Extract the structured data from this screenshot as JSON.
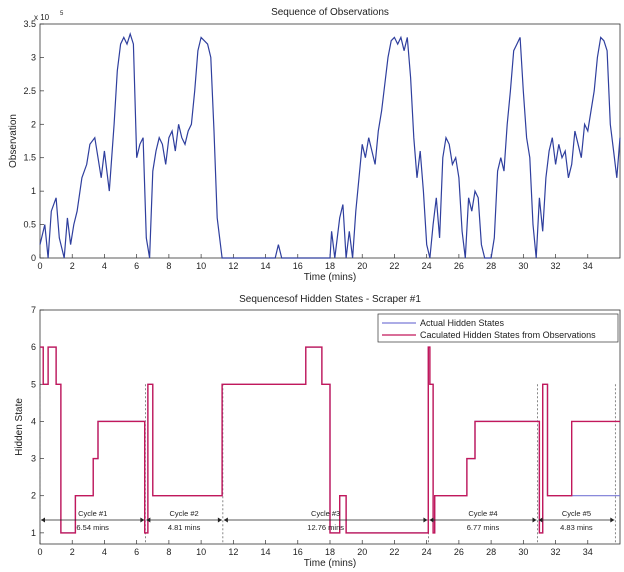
{
  "chart_data": [
    {
      "type": "line",
      "title": "Sequence of Observations",
      "xlabel": "Time (mins)",
      "ylabel": "Observation",
      "y_multiplier_label": "x 10",
      "y_multiplier_exp": "5",
      "xlim": [
        0,
        36
      ],
      "ylim": [
        0,
        3.5
      ],
      "xticks": [
        0,
        2,
        4,
        6,
        8,
        10,
        12,
        14,
        16,
        18,
        20,
        22,
        24,
        26,
        28,
        30,
        32,
        34
      ],
      "yticks": [
        0,
        0.5,
        1,
        1.5,
        2,
        2.5,
        3,
        3.5
      ],
      "grid": false,
      "color": "#2f3f9e",
      "series": [
        {
          "x": [
            0,
            0.3,
            0.5,
            0.7,
            1.0,
            1.2,
            1.5,
            1.7,
            1.9,
            2.1,
            2.3,
            2.6,
            2.9,
            3.1,
            3.4,
            3.6,
            3.8,
            4.0,
            4.3,
            4.6,
            4.8,
            5.0,
            5.2,
            5.4,
            5.6,
            5.8,
            6.0,
            6.2,
            6.4,
            6.6,
            6.8,
            7.0,
            7.2,
            7.4,
            7.6,
            7.8,
            8.0,
            8.2,
            8.4,
            8.6,
            8.8,
            9.0,
            9.2,
            9.4,
            9.6,
            9.8,
            10.0,
            10.2,
            10.4,
            10.6,
            10.8,
            11.0,
            11.3,
            11.6,
            12.0,
            13.0,
            14.0,
            14.6,
            14.8,
            15.0,
            16.0,
            17.0,
            17.3,
            17.6,
            18.0,
            18.1,
            18.3,
            18.6,
            18.8,
            19.0,
            19.2,
            19.4,
            19.6,
            19.8,
            20.0,
            20.2,
            20.4,
            20.6,
            20.8,
            21.0,
            21.2,
            21.4,
            21.6,
            21.8,
            22.0,
            22.2,
            22.4,
            22.6,
            22.8,
            23.0,
            23.2,
            23.4,
            23.6,
            23.8,
            24.0,
            24.2,
            24.4,
            24.6,
            24.8,
            25.0,
            25.2,
            25.4,
            25.6,
            25.8,
            26.0,
            26.2,
            26.4,
            26.6,
            26.8,
            27.0,
            27.2,
            27.4,
            27.6,
            27.8,
            28.0,
            28.2,
            28.4,
            28.6,
            28.8,
            29.0,
            29.2,
            29.4,
            29.6,
            29.8,
            30.0,
            30.2,
            30.4,
            30.6,
            30.8,
            31.0,
            31.2,
            31.4,
            31.6,
            31.8,
            32.0,
            32.2,
            32.4,
            32.6,
            32.8,
            33.0,
            33.2,
            33.4,
            33.6,
            33.8,
            34.0,
            34.2,
            34.4,
            34.6,
            34.8,
            35.0,
            35.2,
            35.4,
            35.6,
            35.8,
            36.0
          ],
          "y": [
            0.2,
            0.5,
            0.0,
            0.7,
            0.9,
            0.3,
            0.0,
            0.6,
            0.2,
            0.5,
            0.7,
            1.2,
            1.4,
            1.7,
            1.8,
            1.5,
            1.2,
            1.6,
            1.0,
            2.0,
            2.8,
            3.2,
            3.3,
            3.2,
            3.35,
            3.2,
            1.5,
            1.7,
            1.8,
            0.3,
            0.0,
            1.3,
            1.6,
            1.8,
            1.7,
            1.4,
            1.8,
            1.9,
            1.6,
            2.0,
            1.8,
            1.7,
            1.9,
            2.0,
            2.5,
            3.1,
            3.3,
            3.25,
            3.2,
            3.0,
            1.9,
            0.6,
            0.0,
            0.0,
            0.0,
            0.0,
            0.0,
            0.0,
            0.2,
            0.0,
            0.0,
            0.0,
            0.0,
            0.0,
            0.0,
            0.4,
            0.0,
            0.6,
            0.8,
            0.0,
            0.4,
            0.0,
            0.7,
            1.2,
            1.7,
            1.5,
            1.8,
            1.6,
            1.4,
            1.9,
            2.2,
            2.6,
            3.0,
            3.25,
            3.3,
            3.2,
            3.3,
            3.1,
            3.3,
            2.7,
            1.8,
            1.2,
            1.6,
            1.0,
            0.2,
            0.0,
            0.5,
            0.9,
            0.3,
            1.5,
            1.8,
            1.7,
            1.4,
            1.5,
            1.2,
            0.4,
            0.0,
            0.9,
            0.7,
            1.0,
            0.9,
            0.2,
            0.0,
            0.0,
            0.0,
            0.3,
            1.3,
            1.5,
            1.3,
            2.0,
            2.5,
            3.1,
            3.2,
            3.3,
            2.5,
            1.8,
            1.5,
            0.5,
            0.0,
            0.9,
            0.4,
            1.2,
            1.6,
            1.8,
            1.4,
            1.7,
            1.5,
            1.6,
            1.2,
            1.4,
            1.9,
            1.7,
            1.5,
            2.0,
            1.9,
            2.2,
            2.5,
            3.0,
            3.3,
            3.25,
            3.1,
            2.0,
            1.6,
            1.2,
            1.8
          ]
        }
      ]
    },
    {
      "type": "line",
      "title": "Sequencesof Hidden States - Scraper #1",
      "xlabel": "Time (mins)",
      "ylabel": "Hidden State",
      "xlim": [
        0,
        36
      ],
      "ylim": [
        0.7,
        7
      ],
      "xticks": [
        0,
        2,
        4,
        6,
        8,
        10,
        12,
        14,
        16,
        18,
        20,
        22,
        24,
        26,
        28,
        30,
        32,
        34
      ],
      "yticks": [
        1,
        2,
        3,
        4,
        5,
        6,
        7
      ],
      "grid": false,
      "legend": "top-right",
      "series": [
        {
          "name": "Actual Hidden States",
          "color": "#7a7ad6",
          "x": [
            0,
            0.2,
            0.2,
            0.5,
            0.5,
            1.0,
            1.0,
            1.3,
            1.3,
            1.7,
            1.7,
            2.2,
            2.2,
            3.3,
            3.3,
            3.6,
            3.6,
            6.5,
            6.5,
            6.7,
            6.7,
            7.0,
            7.0,
            11.3,
            11.3,
            16.5,
            16.5,
            17.5,
            17.5,
            18.0,
            18.0,
            18.6,
            18.6,
            19.0,
            19.0,
            24.1,
            24.1,
            24.2,
            24.2,
            24.4,
            24.4,
            24.5,
            24.5,
            26.5,
            26.5,
            27.0,
            27.0,
            27.5,
            27.5,
            31.0,
            31.0,
            31.2,
            31.2,
            31.5,
            31.5,
            33.0,
            33.0,
            36.0
          ],
          "y": [
            6,
            6,
            5,
            5,
            6,
            6,
            5,
            5,
            1,
            1,
            1,
            1,
            2,
            2,
            3,
            3,
            4,
            4,
            1,
            1,
            5,
            5,
            2,
            2,
            5,
            5,
            6,
            6,
            5,
            5,
            1,
            1,
            2,
            2,
            1,
            1,
            6,
            6,
            5,
            5,
            1,
            1,
            2,
            2,
            3,
            3,
            4,
            4,
            4,
            4,
            1,
            1,
            5,
            5,
            2,
            2,
            2,
            2
          ]
        },
        {
          "name": "Caculated Hidden States from Observations",
          "color": "#c2185b",
          "x": [
            0,
            0.2,
            0.2,
            0.5,
            0.5,
            1.0,
            1.0,
            1.3,
            1.3,
            1.7,
            1.7,
            2.2,
            2.2,
            3.3,
            3.3,
            3.6,
            3.6,
            6.5,
            6.5,
            6.7,
            6.7,
            7.0,
            7.0,
            11.3,
            11.3,
            16.5,
            16.5,
            17.5,
            17.5,
            18.0,
            18.0,
            18.6,
            18.6,
            19.0,
            19.0,
            24.1,
            24.1,
            24.2,
            24.2,
            24.4,
            24.4,
            24.5,
            24.5,
            26.5,
            26.5,
            27.0,
            27.0,
            27.5,
            27.5,
            31.0,
            31.0,
            31.2,
            31.2,
            31.5,
            31.5,
            33.0,
            33.0,
            36.0
          ],
          "y": [
            6,
            6,
            5,
            5,
            6,
            6,
            5,
            5,
            1,
            1,
            1,
            1,
            2,
            2,
            3,
            3,
            4,
            4,
            1,
            1,
            5,
            5,
            2,
            2,
            5,
            5,
            6,
            6,
            5,
            5,
            1,
            1,
            2,
            2,
            1,
            1,
            6,
            6,
            5,
            5,
            1,
            1,
            2,
            2,
            3,
            3,
            4,
            4,
            4,
            4,
            1,
            1,
            5,
            5,
            2,
            2,
            4,
            4
          ]
        }
      ],
      "cycle_boundaries": [
        0,
        6.54,
        11.35,
        24.11,
        30.88,
        35.71
      ],
      "annotations": [
        {
          "label": "Cycle #1",
          "duration": "6.54 mins"
        },
        {
          "label": "Cycle #2",
          "duration": "4.81 mins"
        },
        {
          "label": "Cycle #3",
          "duration": "12.76 mins"
        },
        {
          "label": "Cycle #4",
          "duration": "6.77 mins"
        },
        {
          "label": "Cycle #5",
          "duration": "4.83 mins"
        }
      ]
    }
  ]
}
